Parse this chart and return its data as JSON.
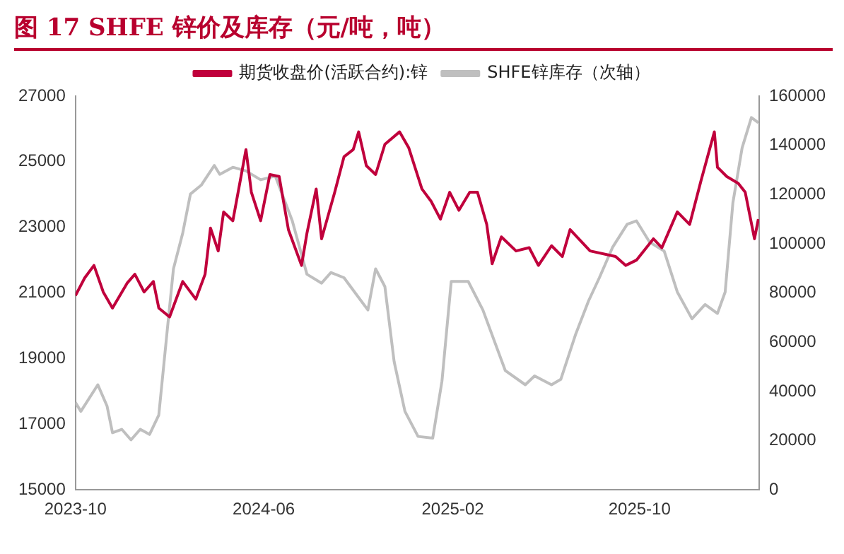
{
  "chart_data": {
    "type": "line",
    "title": "图 17  SHFE 锌价及库存（元/吨，吨）",
    "xlim": [
      "2023-10-01",
      "2026-03-05"
    ],
    "xticks": [
      "2023-10",
      "2024-06",
      "2025-02",
      "2025-10"
    ],
    "ylim": [
      15000,
      27000
    ],
    "yticks": [
      15000,
      17000,
      19000,
      21000,
      23000,
      25000,
      27000
    ],
    "y2lim": [
      0,
      160000
    ],
    "y2ticks": [
      0,
      20000,
      40000,
      60000,
      80000,
      100000,
      120000,
      140000,
      160000
    ],
    "grid": false,
    "legend": "top",
    "marker": "none",
    "line_style": "solid",
    "series": [
      {
        "name": "期货收盘价(活跃合约):锌",
        "color": "#c0003c",
        "x": [
          "2023-10-01",
          "2023-10-13",
          "2023-10-25",
          "2023-11-06",
          "2023-11-18",
          "2023-12-07",
          "2023-12-17",
          "2023-12-29",
          "2024-01-10",
          "2024-01-17",
          "2024-01-31",
          "2024-02-17",
          "2024-03-05",
          "2024-03-17",
          "2024-03-24",
          "2024-04-03",
          "2024-04-10",
          "2024-04-22",
          "2024-05-09",
          "2024-05-16",
          "2024-05-28",
          "2024-06-09",
          "2024-06-21",
          "2024-07-03",
          "2024-07-20",
          "2024-07-27",
          "2024-08-08",
          "2024-08-15",
          "2024-09-01",
          "2024-09-13",
          "2024-09-25",
          "2024-10-02",
          "2024-10-12",
          "2024-10-24",
          "2024-11-05",
          "2024-11-24",
          "2024-12-06",
          "2024-12-23",
          "2025-01-04",
          "2025-01-16",
          "2025-01-28",
          "2025-02-09",
          "2025-02-23",
          "2025-03-05",
          "2025-03-17",
          "2025-03-24",
          "2025-04-05",
          "2025-04-24",
          "2025-05-11",
          "2025-05-23",
          "2025-06-09",
          "2025-06-23",
          "2025-07-03",
          "2025-07-29",
          "2025-08-31",
          "2025-09-13",
          "2025-09-27",
          "2025-10-19",
          "2025-10-30",
          "2025-11-19",
          "2025-12-05",
          "2025-12-20",
          "2026-01-06",
          "2026-01-10",
          "2026-01-22",
          "2026-02-06",
          "2026-02-15",
          "2026-02-27",
          "2026-03-04"
        ],
        "values": [
          20920,
          21460,
          21840,
          21030,
          20540,
          21300,
          21570,
          21030,
          21350,
          20540,
          20270,
          21350,
          20810,
          21570,
          22980,
          22280,
          23470,
          23200,
          25370,
          24070,
          23200,
          24610,
          24550,
          22930,
          21840,
          22820,
          24170,
          22650,
          24070,
          25150,
          25370,
          25910,
          24880,
          24610,
          25530,
          25910,
          25420,
          24170,
          23790,
          23250,
          24070,
          23520,
          24070,
          24070,
          23090,
          21890,
          22710,
          22280,
          22380,
          21840,
          22440,
          22110,
          22930,
          22280,
          22110,
          21840,
          22000,
          22650,
          22380,
          23470,
          23090,
          24450,
          25910,
          24830,
          24550,
          24340,
          24070,
          22650,
          23250
        ]
      },
      {
        "name": "SHFE锌库存（次轴）",
        "color": "#bfbfbf",
        "axis": "y2",
        "x": [
          "2023-10-01",
          "2023-10-08",
          "2023-10-30",
          "2023-11-11",
          "2023-11-18",
          "2023-11-30",
          "2023-12-12",
          "2023-12-24",
          "2024-01-05",
          "2024-01-17",
          "2024-01-29",
          "2024-02-05",
          "2024-02-17",
          "2024-02-27",
          "2024-03-12",
          "2024-03-29",
          "2024-04-05",
          "2024-04-22",
          "2024-05-09",
          "2024-05-28",
          "2024-06-16",
          "2024-07-08",
          "2024-07-27",
          "2024-08-15",
          "2024-08-27",
          "2024-09-13",
          "2024-10-14",
          "2024-10-24",
          "2024-11-05",
          "2024-11-17",
          "2024-12-01",
          "2024-12-18",
          "2025-01-06",
          "2025-01-18",
          "2025-01-30",
          "2025-02-21",
          "2025-03-12",
          "2025-04-10",
          "2025-05-06",
          "2025-05-18",
          "2025-06-09",
          "2025-06-21",
          "2025-07-10",
          "2025-07-27",
          "2025-08-10",
          "2025-08-27",
          "2025-09-15",
          "2025-09-27",
          "2025-10-14",
          "2025-11-02",
          "2025-11-19",
          "2025-12-08",
          "2025-12-25",
          "2026-01-10",
          "2026-01-20",
          "2026-01-30",
          "2026-02-11",
          "2026-02-23",
          "2026-03-04"
        ],
        "values": [
          35500,
          31900,
          42700,
          34000,
          23200,
          24600,
          20300,
          24600,
          22500,
          30400,
          68100,
          89800,
          104300,
          120200,
          123800,
          131800,
          128200,
          131100,
          129600,
          126000,
          127500,
          109300,
          87600,
          84000,
          88300,
          86200,
          73100,
          89800,
          82600,
          52100,
          31900,
          21700,
          21000,
          44200,
          84700,
          84700,
          73100,
          48500,
          42700,
          46300,
          42700,
          44900,
          63000,
          76800,
          86200,
          98500,
          107900,
          109300,
          100700,
          97000,
          80400,
          69500,
          75300,
          71700,
          80400,
          116600,
          139000,
          151300,
          149200
        ]
      }
    ]
  }
}
